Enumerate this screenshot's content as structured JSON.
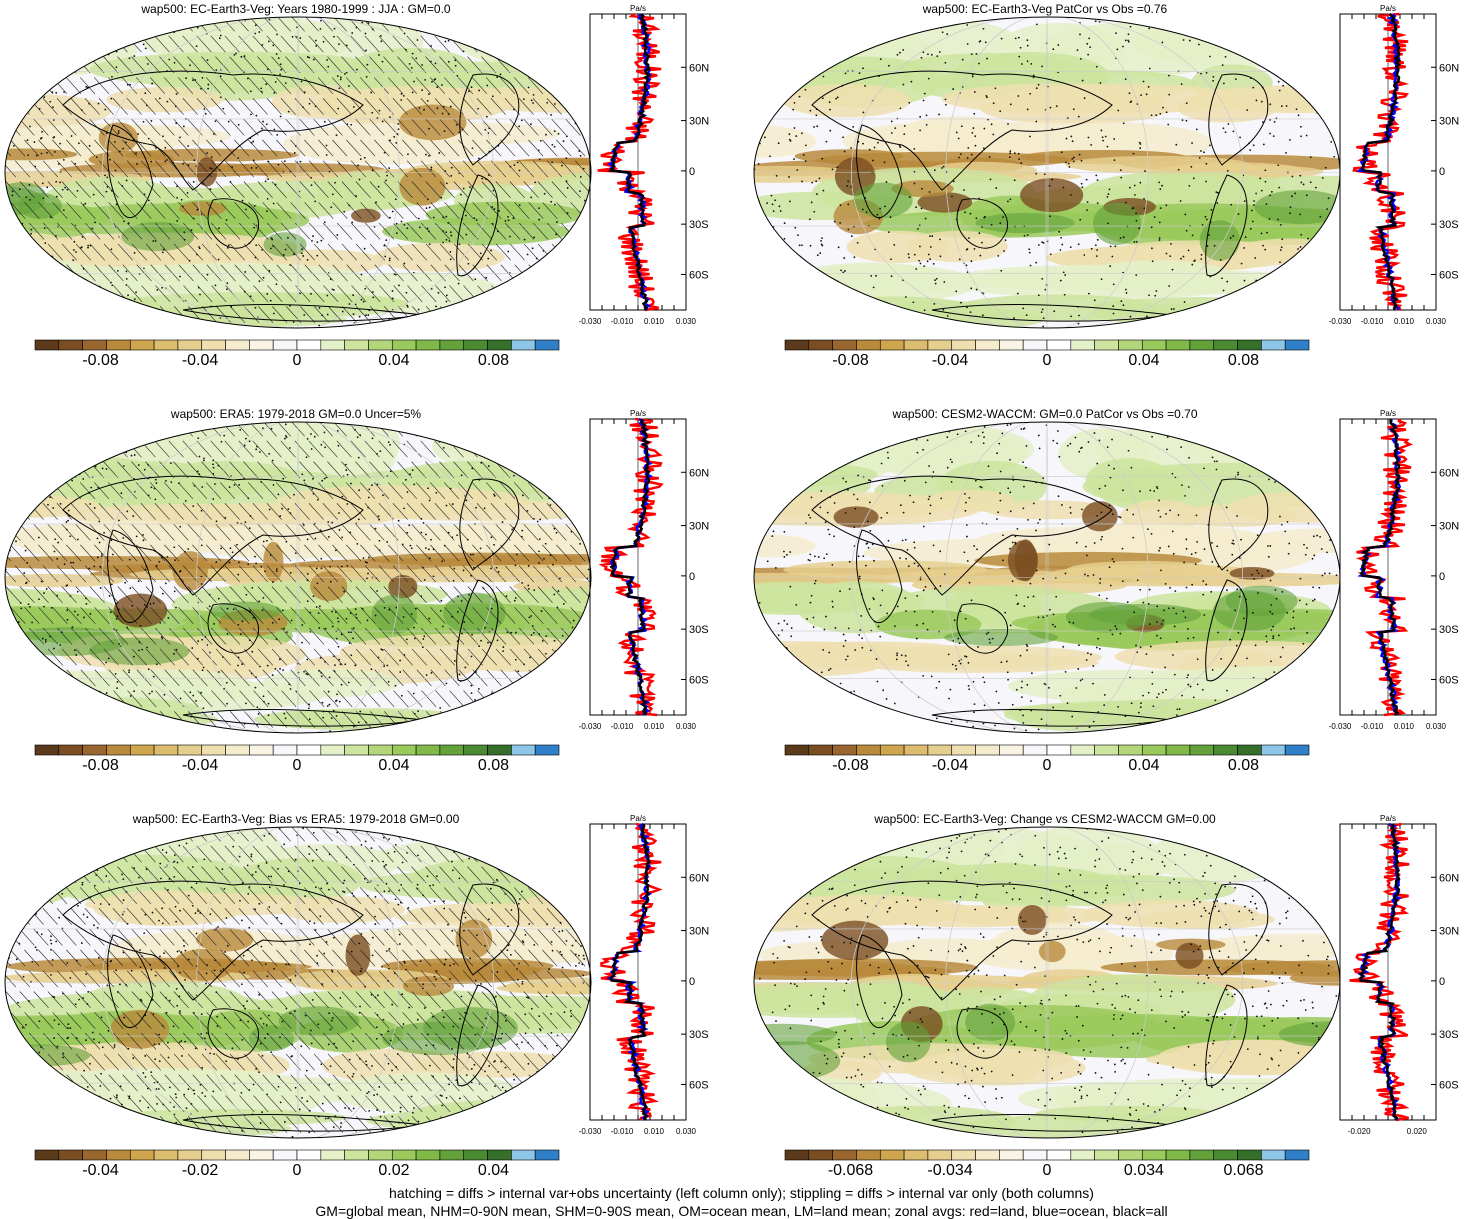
{
  "panels": [
    {
      "title": "wap500: EC-Earth3-Veg: Years 1980-1999 : JJA : GM=0.0",
      "hatch": true,
      "cbar_labels": [
        "-0.08",
        "-0.04",
        "0",
        "0.04",
        "0.08"
      ],
      "zonal_xticks": [
        "-0.030",
        "-0.010",
        "0.010",
        "0.030"
      ]
    },
    {
      "title": "wap500: EC-Earth3-Veg PatCor vs Obs =0.76",
      "hatch": false,
      "cbar_labels": [
        "-0.08",
        "-0.04",
        "0",
        "0.04",
        "0.08"
      ],
      "zonal_xticks": [
        "-0.030",
        "-0.010",
        "0.010",
        "0.030"
      ]
    },
    {
      "title": "wap500: ERA5: 1979-2018 GM=0.0 Uncer=5%",
      "hatch": true,
      "cbar_labels": [
        "-0.08",
        "-0.04",
        "0",
        "0.04",
        "0.08"
      ],
      "zonal_xticks": [
        "-0.030",
        "-0.010",
        "0.010",
        "0.030"
      ]
    },
    {
      "title": "wap500: CESM2-WACCM: GM=0.0 PatCor vs Obs =0.70",
      "hatch": false,
      "cbar_labels": [
        "-0.08",
        "-0.04",
        "0",
        "0.04",
        "0.08"
      ],
      "zonal_xticks": [
        "-0.030",
        "-0.010",
        "0.010",
        "0.030"
      ]
    },
    {
      "title": "wap500: EC-Earth3-Veg: Bias vs ERA5: 1979-2018 GM=0.00",
      "hatch": true,
      "cbar_labels": [
        "-0.04",
        "-0.02",
        "0",
        "0.02",
        "0.04"
      ],
      "zonal_xticks": [
        "-0.030",
        "-0.010",
        "0.010",
        "0.030"
      ]
    },
    {
      "title": "wap500: EC-Earth3-Veg: Change vs CESM2-WACCM GM=0.00",
      "hatch": false,
      "cbar_labels": [
        "-0.068",
        "-0.034",
        "0",
        "0.034",
        "0.068"
      ],
      "zonal_xticks": [
        "-0.020",
        "0.020"
      ]
    }
  ],
  "zonal_unit": "Pa/s",
  "zonal_ylabels": [
    "60N",
    "30N",
    "0",
    "30S",
    "60S"
  ],
  "colors": {
    "palette": [
      "#5a3a1a",
      "#7a4e22",
      "#9a6630",
      "#b98a3c",
      "#cfa64e",
      "#dcbc6e",
      "#e6cf8e",
      "#efdfaf",
      "#f5ecce",
      "#faf4e4",
      "#f7f7fb",
      "#ffffff",
      "#e4f0c8",
      "#cce49e",
      "#b4d67a",
      "#9ac95c",
      "#80b948",
      "#63a23a",
      "#4a8a32",
      "#356f2a",
      "#8ec6e8",
      "#2f7fc9"
    ],
    "land": "#ff0000",
    "ocean": "#0000ff",
    "all": "#000000"
  },
  "footer": [
    "hatching = diffs > internal var+obs uncertainty (left column only); stippling = diffs > internal var only (both columns)",
    "GM=global mean, NHM=0-90N mean, SHM=0-90S mean, OM=ocean mean, LM=land mean; zonal avgs: red=land, blue=ocean, black=all"
  ],
  "chart_data": [
    {
      "type": "heatmap",
      "title": "wap500: EC-Earth3-Veg: Years 1980-1999 : JJA : GM=0.0",
      "units": "Pa/s",
      "colorbar": [
        "-0.08",
        "-0.04",
        "0",
        "0.04",
        "0.08"
      ],
      "zonal": {
        "lat": [
          "60N",
          "30N",
          "0",
          "30S",
          "60S"
        ],
        "xticks": [
          "-0.030",
          "-0.010",
          "0.010",
          "0.030"
        ]
      }
    },
    {
      "type": "heatmap",
      "title": "wap500: EC-Earth3-Veg PatCor vs Obs =0.76",
      "units": "Pa/s",
      "colorbar": [
        "-0.08",
        "-0.04",
        "0",
        "0.04",
        "0.08"
      ]
    },
    {
      "type": "heatmap",
      "title": "wap500: ERA5: 1979-2018 GM=0.0 Uncer=5%",
      "units": "Pa/s",
      "colorbar": [
        "-0.08",
        "-0.04",
        "0",
        "0.04",
        "0.08"
      ]
    },
    {
      "type": "heatmap",
      "title": "wap500: CESM2-WACCM: GM=0.0 PatCor vs Obs =0.70",
      "units": "Pa/s",
      "colorbar": [
        "-0.08",
        "-0.04",
        "0",
        "0.04",
        "0.08"
      ]
    },
    {
      "type": "heatmap",
      "title": "wap500: EC-Earth3-Veg: Bias vs ERA5: 1979-2018 GM=0.00",
      "units": "Pa/s",
      "colorbar": [
        "-0.04",
        "-0.02",
        "0",
        "0.02",
        "0.04"
      ]
    },
    {
      "type": "heatmap",
      "title": "wap500: EC-Earth3-Veg: Change vs CESM2-WACCM GM=0.00",
      "units": "Pa/s",
      "colorbar": [
        "-0.068",
        "-0.034",
        "0",
        "0.034",
        "0.068"
      ]
    }
  ]
}
